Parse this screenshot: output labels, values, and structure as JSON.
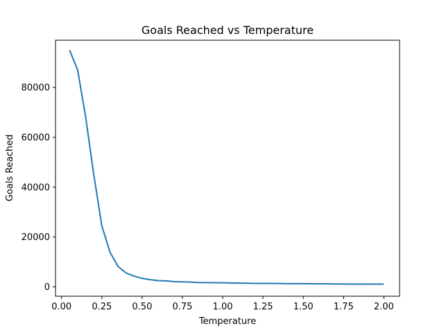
{
  "chart_data": {
    "type": "line",
    "title": "Goals Reached vs Temperature",
    "xlabel": "Temperature",
    "ylabel": "Goals Reached",
    "xlim": [
      -0.0375,
      2.0975
    ],
    "ylim": [
      -3760,
      98960
    ],
    "xticks": [
      0.0,
      0.25,
      0.5,
      0.75,
      1.0,
      1.25,
      1.5,
      1.75,
      2.0
    ],
    "xtick_labels": [
      "0.00",
      "0.25",
      "0.50",
      "0.75",
      "1.00",
      "1.25",
      "1.50",
      "1.75",
      "2.00"
    ],
    "yticks": [
      0,
      20000,
      40000,
      60000,
      80000
    ],
    "ytick_labels": [
      "0",
      "20000",
      "40000",
      "60000",
      "80000"
    ],
    "grid": false,
    "line_color": "#1f77b4",
    "series": [
      {
        "x": [
          0.05,
          0.1,
          0.15,
          0.2,
          0.25,
          0.3,
          0.35,
          0.4,
          0.45,
          0.5,
          0.55,
          0.6,
          0.65,
          0.7,
          0.75,
          0.8,
          0.85,
          0.9,
          0.95,
          1.0,
          1.05,
          1.1,
          1.15,
          1.2,
          1.25,
          1.3,
          1.35,
          1.4,
          1.45,
          1.5,
          1.55,
          1.6,
          1.65,
          1.7,
          1.75,
          1.8,
          1.85,
          1.9,
          1.95,
          2.0
        ],
        "values": [
          95000,
          87000,
          68000,
          45000,
          24500,
          14000,
          8200,
          5600,
          4300,
          3400,
          2900,
          2500,
          2400,
          2100,
          2000,
          1900,
          1750,
          1700,
          1680,
          1650,
          1550,
          1500,
          1450,
          1400,
          1380,
          1400,
          1350,
          1300,
          1280,
          1300,
          1250,
          1230,
          1200,
          1150,
          1150,
          1120,
          1100,
          1100,
          1120,
          1100
        ]
      }
    ]
  }
}
